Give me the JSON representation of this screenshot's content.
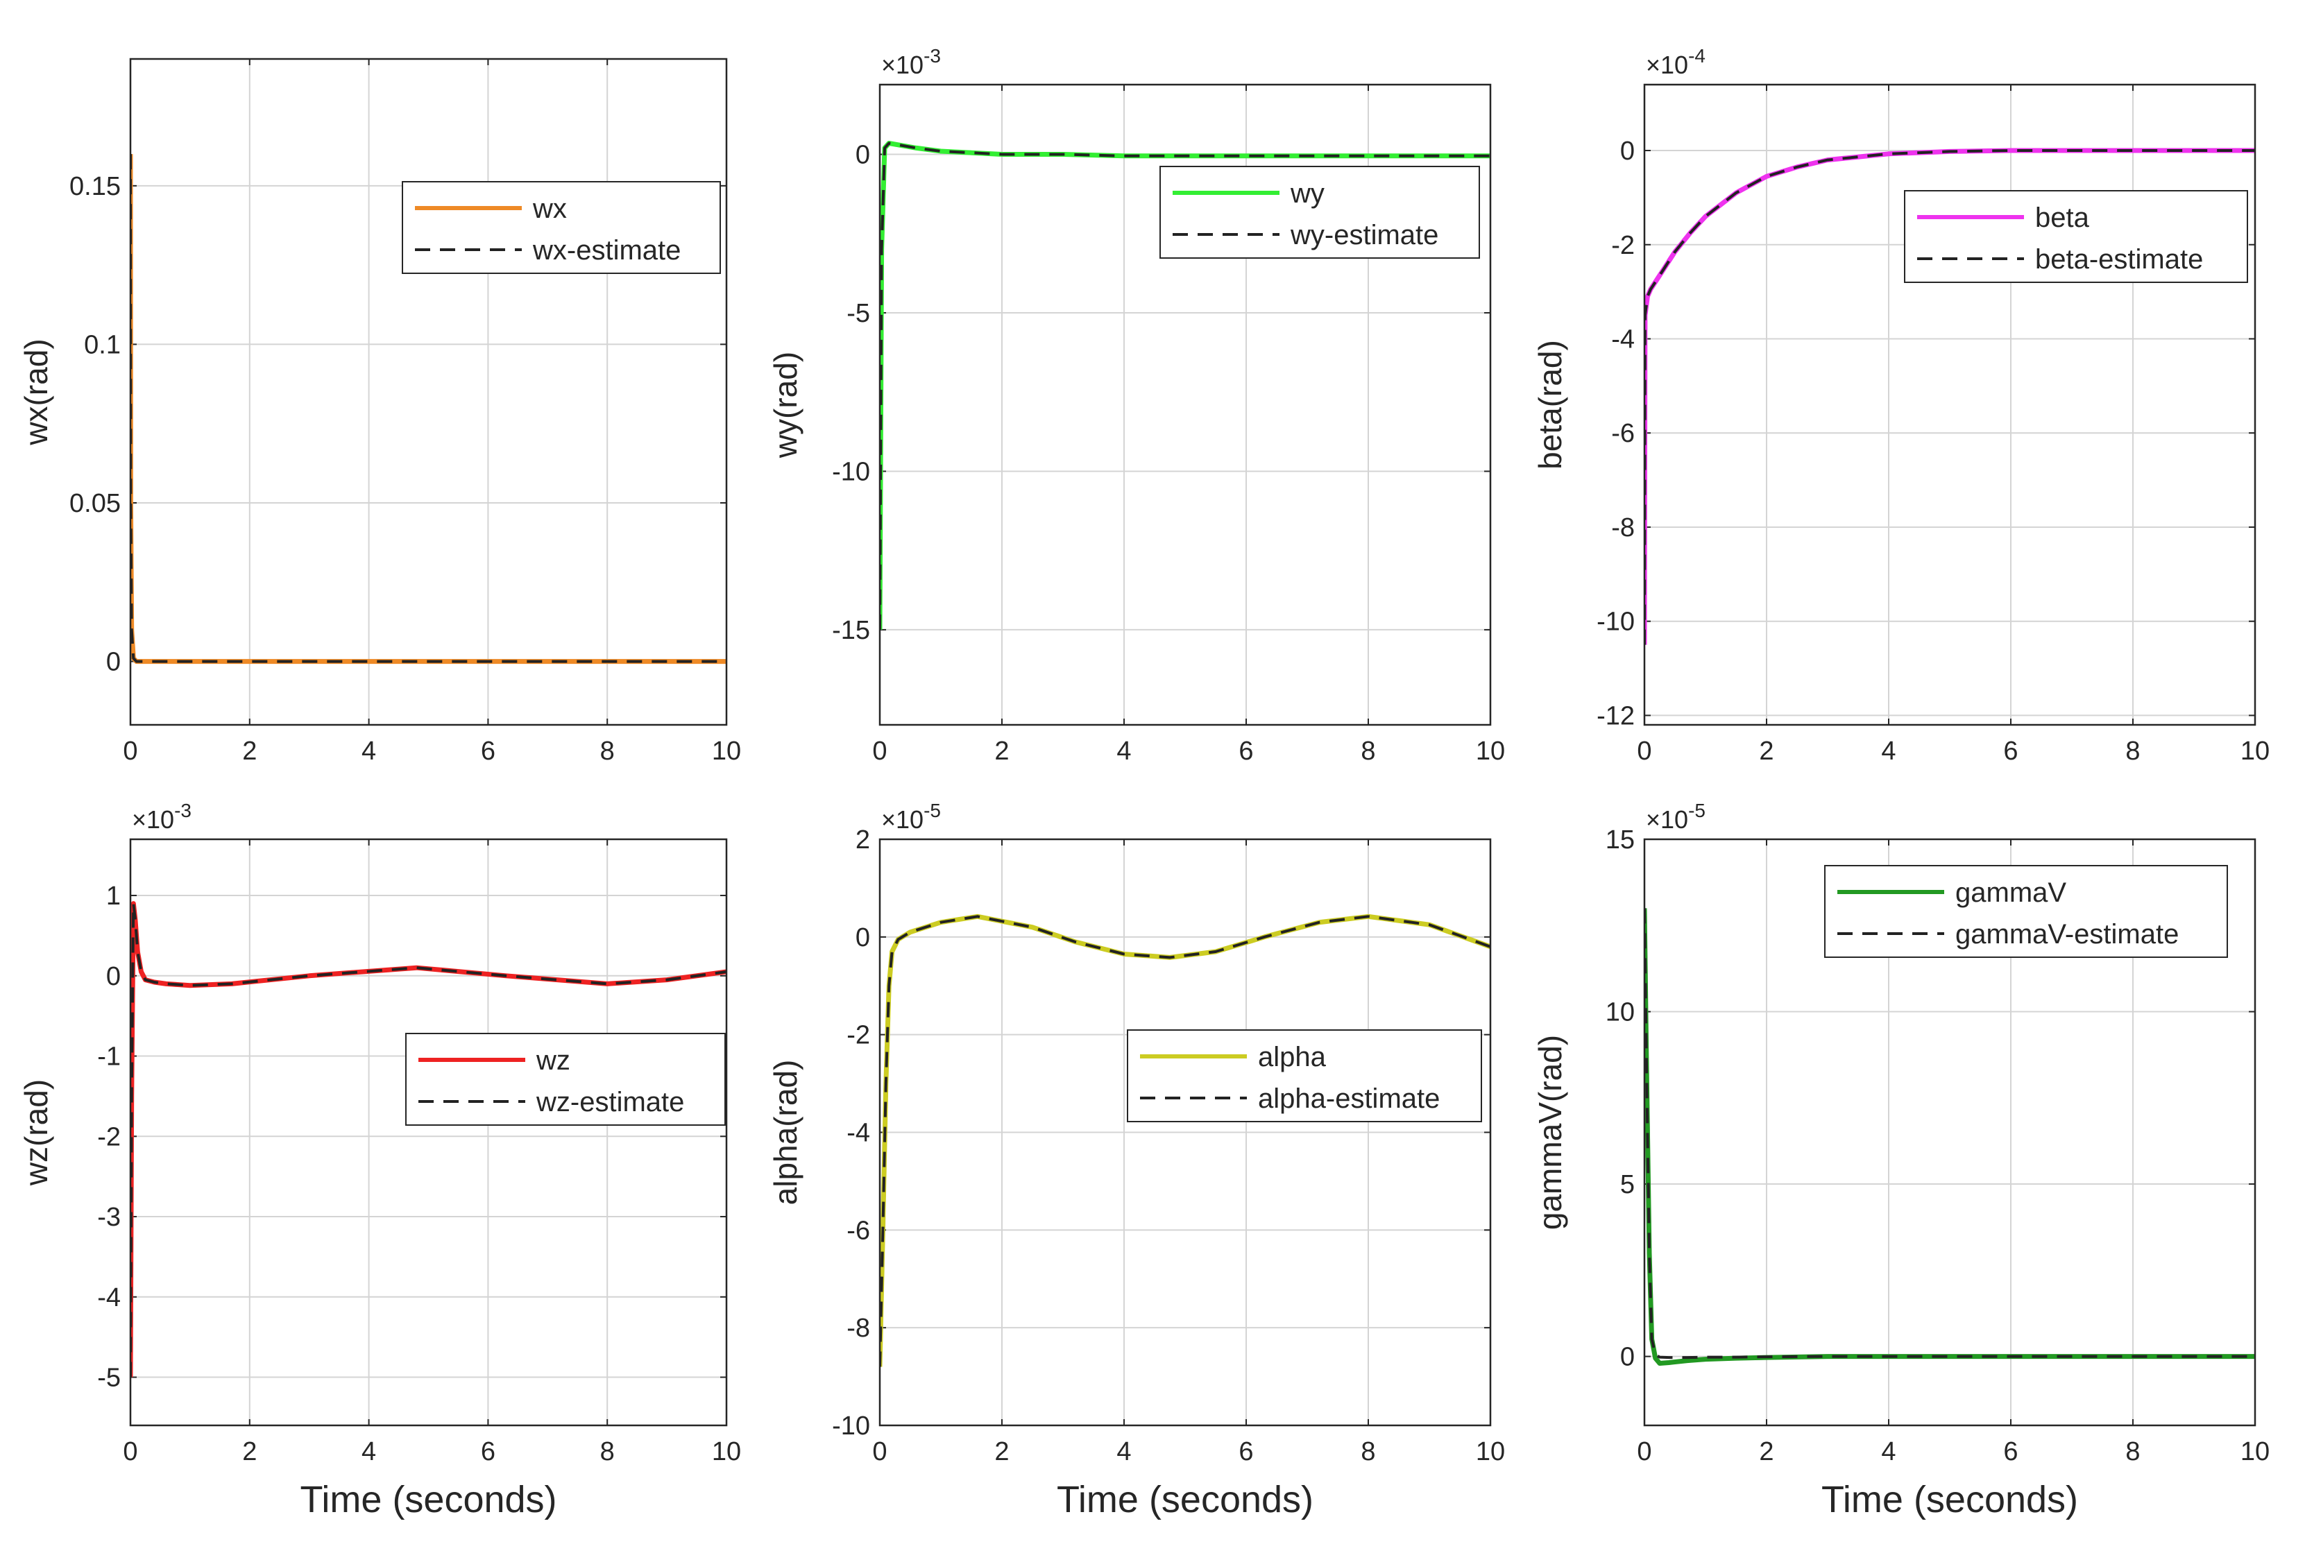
{
  "figure": {
    "shared_xlabel": "Time (seconds)"
  },
  "chart_data": [
    {
      "id": "wx",
      "type": "line",
      "ylabel": "wx(rad)",
      "xlabel": "",
      "xlim": [
        0,
        10
      ],
      "ylim": [
        -0.02,
        0.19
      ],
      "xticks": [
        0,
        2,
        4,
        6,
        8,
        10
      ],
      "yticks": [
        0,
        0.05,
        0.1,
        0.15
      ],
      "ytick_labels": [
        "0",
        "0.05",
        "0.1",
        "0.15"
      ],
      "exponent": "",
      "legend": {
        "position": "upper-right",
        "entries": [
          "wx",
          "wx-estimate"
        ]
      },
      "series": [
        {
          "name": "wx",
          "color": "#ee8a26",
          "style": "solid",
          "x": [
            0,
            0.005,
            0.02,
            0.05,
            0.1,
            1,
            2,
            4,
            6,
            8,
            10
          ],
          "y": [
            0.16,
            0.05,
            0.01,
            0.001,
            0,
            0,
            0,
            0,
            0,
            0,
            0
          ]
        },
        {
          "name": "wx-estimate",
          "color": "#222222",
          "style": "dashed",
          "x": [
            0,
            0.005,
            0.02,
            0.05,
            0.1,
            1,
            2,
            4,
            6,
            8,
            10
          ],
          "y": [
            0.16,
            0.05,
            0.01,
            0.001,
            0,
            0,
            0,
            0,
            0,
            0,
            0
          ]
        }
      ]
    },
    {
      "id": "wy",
      "type": "line",
      "ylabel": "wy(rad)",
      "xlabel": "",
      "xlim": [
        0,
        10
      ],
      "ylim": [
        -18,
        2.2
      ],
      "xticks": [
        0,
        2,
        4,
        6,
        8,
        10
      ],
      "yticks": [
        -15,
        -10,
        -5,
        0
      ],
      "ytick_labels": [
        "-15",
        "-10",
        "-5",
        "0"
      ],
      "exponent": "-3",
      "legend": {
        "position": "upper-right",
        "entries": [
          "wy",
          "wy-estimate"
        ]
      },
      "series": [
        {
          "name": "wy",
          "color": "#33ee33",
          "style": "solid",
          "x": [
            0,
            0.03,
            0.08,
            0.15,
            0.3,
            0.6,
            1,
            1.5,
            2,
            3,
            4,
            6,
            8,
            10
          ],
          "y": [
            -15,
            -3,
            0.2,
            0.35,
            0.3,
            0.2,
            0.1,
            0.05,
            0,
            0,
            -0.05,
            -0.05,
            -0.05,
            -0.05
          ]
        },
        {
          "name": "wy-estimate",
          "color": "#222222",
          "style": "dashed",
          "x": [
            0,
            0.03,
            0.08,
            0.15,
            0.3,
            0.6,
            1,
            1.5,
            2,
            3,
            4,
            6,
            8,
            10
          ],
          "y": [
            -15,
            -3,
            0.2,
            0.35,
            0.3,
            0.2,
            0.1,
            0.05,
            0,
            0,
            -0.05,
            -0.05,
            -0.05,
            -0.05
          ]
        }
      ]
    },
    {
      "id": "beta",
      "type": "line",
      "ylabel": "beta(rad)",
      "xlabel": "",
      "xlim": [
        0,
        10
      ],
      "ylim": [
        -12.2,
        1.4
      ],
      "xticks": [
        0,
        2,
        4,
        6,
        8,
        10
      ],
      "yticks": [
        -12,
        -10,
        -8,
        -6,
        -4,
        -2,
        0
      ],
      "ytick_labels": [
        "-12",
        "-10",
        "-8",
        "-6",
        "-4",
        "-2",
        "0"
      ],
      "exponent": "-4",
      "legend": {
        "position": "upper-right",
        "entries": [
          "beta",
          "beta-estimate"
        ]
      },
      "series": [
        {
          "name": "beta",
          "color": "#ee33ee",
          "style": "solid",
          "x": [
            0,
            0.01,
            0.05,
            0.1,
            0.3,
            0.5,
            0.75,
            1,
            1.5,
            2,
            2.5,
            3,
            4,
            5,
            6,
            8,
            10
          ],
          "y": [
            -10.5,
            -3.5,
            -3.1,
            -2.95,
            -2.55,
            -2.15,
            -1.75,
            -1.4,
            -0.9,
            -0.55,
            -0.35,
            -0.2,
            -0.07,
            -0.02,
            0,
            0,
            0
          ]
        },
        {
          "name": "beta-estimate",
          "color": "#222222",
          "style": "dashed",
          "x": [
            0,
            0.01,
            0.05,
            0.1,
            0.3,
            0.5,
            0.75,
            1,
            1.5,
            2,
            2.5,
            3,
            4,
            5,
            6,
            8,
            10
          ],
          "y": [
            -10.5,
            -3.5,
            -3.1,
            -2.95,
            -2.55,
            -2.15,
            -1.75,
            -1.4,
            -0.9,
            -0.55,
            -0.35,
            -0.2,
            -0.07,
            -0.02,
            0,
            0,
            0
          ]
        }
      ]
    },
    {
      "id": "wz",
      "type": "line",
      "ylabel": "wz(rad)",
      "xlabel": "Time (seconds)",
      "xlim": [
        0,
        10
      ],
      "ylim": [
        -5.6,
        1.7
      ],
      "xticks": [
        0,
        2,
        4,
        6,
        8,
        10
      ],
      "yticks": [
        -5,
        -4,
        -3,
        -2,
        -1,
        0,
        1
      ],
      "ytick_labels": [
        "-5",
        "-4",
        "-3",
        "-2",
        "-1",
        "0",
        "1"
      ],
      "exponent": "-3",
      "legend": {
        "position": "middle-right",
        "entries": [
          "wz",
          "wz-estimate"
        ]
      },
      "series": [
        {
          "name": "wz",
          "color": "#ee2222",
          "style": "solid",
          "x": [
            0,
            0.02,
            0.05,
            0.08,
            0.12,
            0.18,
            0.25,
            0.4,
            0.6,
            1,
            1.7,
            3,
            4.8,
            6.3,
            8,
            9,
            10
          ],
          "y": [
            -5,
            -1.5,
            0.9,
            0.7,
            0.3,
            0.05,
            -0.05,
            -0.08,
            -0.1,
            -0.12,
            -0.1,
            0,
            0.1,
            0,
            -0.1,
            -0.05,
            0.05
          ]
        },
        {
          "name": "wz-estimate",
          "color": "#222222",
          "style": "dashed",
          "x": [
            0,
            0.02,
            0.05,
            0.08,
            0.12,
            0.18,
            0.25,
            0.4,
            0.6,
            1,
            1.7,
            3,
            4.8,
            6.3,
            8,
            9,
            10
          ],
          "y": [
            -5,
            -1.5,
            0.9,
            0.7,
            0.3,
            0.05,
            -0.05,
            -0.08,
            -0.1,
            -0.12,
            -0.1,
            0,
            0.1,
            0,
            -0.1,
            -0.05,
            0.05
          ]
        }
      ]
    },
    {
      "id": "alpha",
      "type": "line",
      "ylabel": "alpha(rad)",
      "xlabel": "Time (seconds)",
      "xlim": [
        0,
        10
      ],
      "ylim": [
        -10,
        2
      ],
      "xticks": [
        0,
        2,
        4,
        6,
        8,
        10
      ],
      "yticks": [
        -10,
        -8,
        -6,
        -4,
        -2,
        0,
        2
      ],
      "ytick_labels": [
        "-10",
        "-8",
        "-6",
        "-4",
        "-2",
        "0",
        "2"
      ],
      "exponent": "-5",
      "legend": {
        "position": "middle-right",
        "entries": [
          "alpha",
          "alpha-estimate"
        ]
      },
      "series": [
        {
          "name": "alpha",
          "color": "#cccc22",
          "style": "solid",
          "x": [
            0,
            0.05,
            0.1,
            0.15,
            0.2,
            0.3,
            0.5,
            1,
            1.6,
            2.5,
            3.2,
            4,
            4.75,
            5.5,
            6.3,
            7.2,
            8,
            9,
            10
          ],
          "y": [
            -8.8,
            -6,
            -3,
            -1,
            -0.3,
            -0.05,
            0.1,
            0.3,
            0.42,
            0.2,
            -0.1,
            -0.35,
            -0.42,
            -0.3,
            0,
            0.3,
            0.42,
            0.25,
            -0.2
          ]
        },
        {
          "name": "alpha-estimate",
          "color": "#222222",
          "style": "dashed",
          "x": [
            0,
            0.05,
            0.1,
            0.15,
            0.2,
            0.3,
            0.5,
            1,
            1.6,
            2.5,
            3.2,
            4,
            4.75,
            5.5,
            6.3,
            7.2,
            8,
            9,
            10
          ],
          "y": [
            -8.8,
            -6,
            -3,
            -1,
            -0.3,
            -0.05,
            0.1,
            0.3,
            0.42,
            0.2,
            -0.1,
            -0.35,
            -0.42,
            -0.3,
            0,
            0.3,
            0.42,
            0.25,
            -0.2
          ]
        }
      ]
    },
    {
      "id": "gammaV",
      "type": "line",
      "ylabel": "gammaV(rad)",
      "xlabel": "Time (seconds)",
      "xlim": [
        0,
        10
      ],
      "ylim": [
        -2,
        15
      ],
      "xticks": [
        0,
        2,
        4,
        6,
        8,
        10
      ],
      "yticks": [
        0,
        5,
        10,
        15
      ],
      "ytick_labels": [
        "0",
        "5",
        "10",
        "15"
      ],
      "exponent": "-5",
      "legend": {
        "position": "upper-right",
        "entries": [
          "gammaV",
          "gammaV-estimate"
        ]
      },
      "series": [
        {
          "name": "gammaV",
          "color": "#229922",
          "style": "solid",
          "x": [
            0,
            0.03,
            0.08,
            0.12,
            0.18,
            0.25,
            0.4,
            0.7,
            1,
            1.5,
            2,
            3,
            4,
            6,
            8,
            10
          ],
          "y": [
            13,
            9,
            3,
            0.5,
            -0.05,
            -0.2,
            -0.18,
            -0.12,
            -0.08,
            -0.05,
            -0.03,
            0,
            0,
            0,
            0,
            0
          ]
        },
        {
          "name": "gammaV-estimate",
          "color": "#222222",
          "style": "dashed",
          "x": [
            0,
            0.03,
            0.08,
            0.12,
            0.18,
            0.25,
            0.4,
            0.7,
            1,
            1.5,
            2,
            3,
            4,
            6,
            8,
            10
          ],
          "y": [
            13,
            9,
            3,
            0.5,
            0.05,
            -0.02,
            -0.03,
            -0.03,
            -0.02,
            -0.02,
            -0.01,
            0,
            0,
            0,
            0,
            0
          ]
        }
      ]
    }
  ]
}
